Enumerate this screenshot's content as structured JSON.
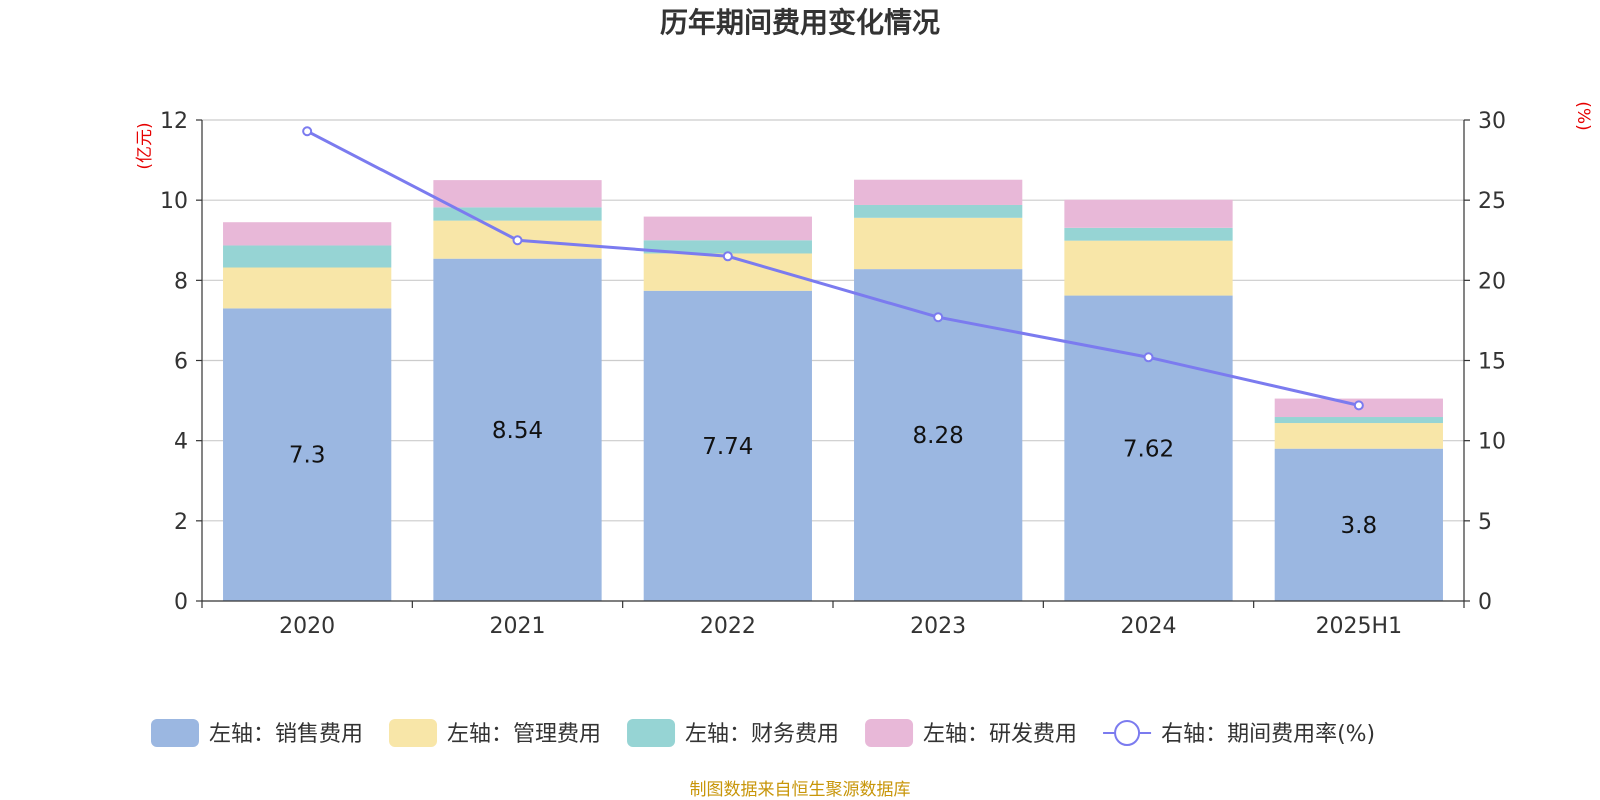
{
  "chart_data": {
    "type": "bar",
    "title": "历年期间费用变化情况",
    "categories": [
      "2020",
      "2021",
      "2022",
      "2023",
      "2024",
      "2025H1"
    ],
    "left_axis": {
      "unit_label": "(亿元)",
      "ylim": [
        0,
        12
      ],
      "ticks": [
        0,
        2,
        4,
        6,
        8,
        10,
        12
      ]
    },
    "right_axis": {
      "unit_label": "(%)",
      "ylim": [
        0,
        30
      ],
      "ticks": [
        0,
        5,
        10,
        15,
        20,
        25,
        30
      ]
    },
    "stacked": true,
    "series": [
      {
        "name": "左轴：销售费用",
        "axis": "left",
        "color": "#9bb7e1",
        "values": [
          7.3,
          8.54,
          7.74,
          8.28,
          7.62,
          3.8
        ],
        "data_labels": [
          "7.3",
          "8.54",
          "7.74",
          "8.28",
          "7.62",
          "3.8"
        ]
      },
      {
        "name": "左轴：管理费用",
        "axis": "left",
        "color": "#f8e6a8",
        "values": [
          1.02,
          0.95,
          0.93,
          1.28,
          1.37,
          0.64
        ]
      },
      {
        "name": "左轴：财务费用",
        "axis": "left",
        "color": "#96d4d4",
        "values": [
          0.55,
          0.33,
          0.33,
          0.32,
          0.32,
          0.15
        ]
      },
      {
        "name": "左轴：研发费用",
        "axis": "left",
        "color": "#e8b8d8",
        "values": [
          0.58,
          0.68,
          0.59,
          0.63,
          0.7,
          0.46
        ]
      },
      {
        "name": "右轴：期间费用率(%)",
        "axis": "right",
        "type": "line",
        "color": "#7b7bef",
        "values": [
          29.3,
          22.5,
          21.5,
          17.7,
          15.2,
          12.2
        ]
      }
    ],
    "grid": true,
    "legend_position": "bottom"
  },
  "source_note": "制图数据来自恒生聚源数据库"
}
